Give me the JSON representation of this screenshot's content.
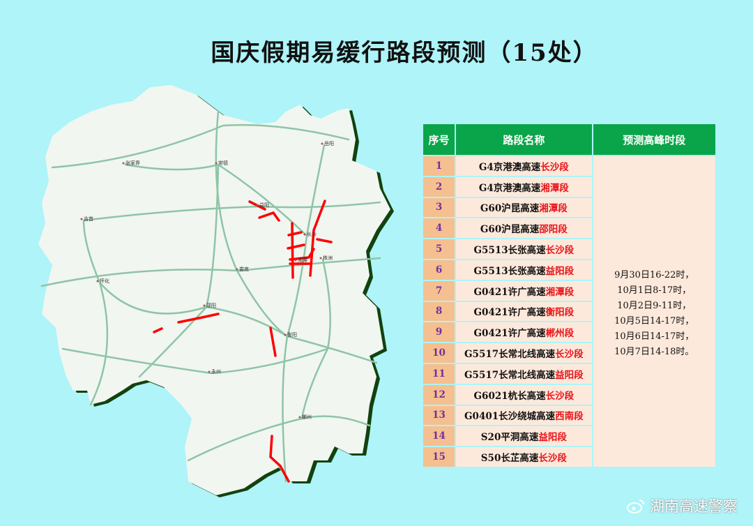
{
  "title": "国庆假期易缓行路段预测（15处）",
  "map": {
    "cities": [
      {
        "name": "张家界"
      },
      {
        "name": "常德"
      },
      {
        "name": "岳阳"
      },
      {
        "name": "益阳"
      },
      {
        "name": "吉首"
      },
      {
        "name": "长沙"
      },
      {
        "name": "株洲"
      },
      {
        "name": "湘潭"
      },
      {
        "name": "娄底"
      },
      {
        "name": "怀化"
      },
      {
        "name": "邵阳"
      },
      {
        "name": "衡阳"
      },
      {
        "name": "永州"
      },
      {
        "name": "郴州"
      }
    ],
    "colors": {
      "land": "#f1f6f1",
      "border": "#12420f",
      "road": "#8fc4a6",
      "congestion": "#ff0000",
      "water": "#aef4f8"
    }
  },
  "table": {
    "headers": [
      "序号",
      "路段名称",
      "预测高峰时段"
    ],
    "rows": [
      {
        "no": "1",
        "road": "G4京港澳高速",
        "section": "长沙段"
      },
      {
        "no": "2",
        "road": "G4京港澳高速",
        "section": "湘潭段"
      },
      {
        "no": "3",
        "road": "G60沪昆高速",
        "section": "湘潭段"
      },
      {
        "no": "4",
        "road": "G60沪昆高速",
        "section": "邵阳段"
      },
      {
        "no": "5",
        "road": "G5513长张高速",
        "section": "长沙段"
      },
      {
        "no": "6",
        "road": "G5513长张高速",
        "section": "益阳段"
      },
      {
        "no": "7",
        "road": "G0421许广高速",
        "section": "湘潭段"
      },
      {
        "no": "8",
        "road": "G0421许广高速",
        "section": "衡阳段"
      },
      {
        "no": "9",
        "road": "G0421许广高速",
        "section": "郴州段"
      },
      {
        "no": "10",
        "road": "G5517长常北线高速",
        "section": "长沙段"
      },
      {
        "no": "11",
        "road": "G5517长常北线高速",
        "section": "益阳段"
      },
      {
        "no": "12",
        "road": "G6021杭长高速",
        "section": "长沙段"
      },
      {
        "no": "13",
        "road": "G0401长沙绕城高速",
        "section": "西南段"
      },
      {
        "no": "14",
        "road": "S20平洞高速",
        "section": "益阳段"
      },
      {
        "no": "15",
        "road": "S50长芷高速",
        "section": "长沙段"
      }
    ],
    "peak_times": [
      "9月30日16-22时，",
      "10月1日8-17时，",
      "10月2日9-11时，",
      "10月5日14-17时，",
      "10月6日14-17时，",
      "10月7日14-18时。"
    ]
  },
  "watermark": "湖南高速警察"
}
